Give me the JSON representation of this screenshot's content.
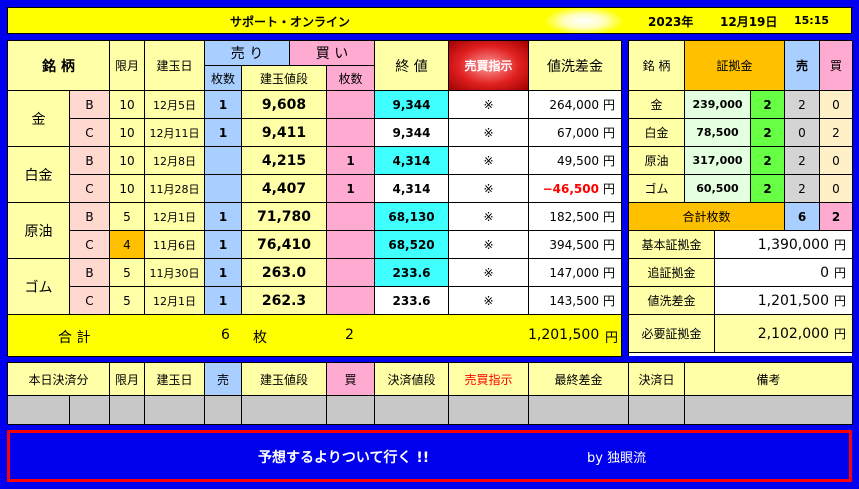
{
  "title": {
    "name": "サポート・オンライン",
    "year": "2023年",
    "date": "12月19日",
    "time": "15:15"
  },
  "main_headers": {
    "meigara": "銘 柄",
    "gengetsu": "限月",
    "tategyokubi": "建玉日",
    "uri": "売 り",
    "kai": "買 い",
    "maisu": "枚数",
    "tategyoku_nedan": "建玉値段",
    "owarine": "終 値",
    "baibai_shiji": "売買指示",
    "nearai_sakin": "値洗差金"
  },
  "products": [
    {
      "name": "金",
      "rows": [
        {
          "type": "B",
          "month": "10",
          "date": "12月5日",
          "sell_qty": "1",
          "price": "9,608",
          "buy_qty": "",
          "close": "9,344",
          "close_hl": true,
          "mark": "※",
          "diff": "264,000",
          "negative": false,
          "unit": "円"
        },
        {
          "type": "C",
          "month": "10",
          "date": "12月11日",
          "sell_qty": "1",
          "price": "9,411",
          "buy_qty": "",
          "close": "9,344",
          "close_hl": false,
          "mark": "※",
          "diff": "67,000",
          "negative": false,
          "unit": "円"
        }
      ]
    },
    {
      "name": "白金",
      "rows": [
        {
          "type": "B",
          "month": "10",
          "date": "12月8日",
          "sell_qty": "",
          "price": "4,215",
          "buy_qty": "1",
          "close": "4,314",
          "close_hl": true,
          "mark": "※",
          "diff": "49,500",
          "negative": false,
          "unit": "円"
        },
        {
          "type": "C",
          "month": "10",
          "date": "11月28日",
          "sell_qty": "",
          "price": "4,407",
          "buy_qty": "1",
          "close": "4,314",
          "close_hl": false,
          "mark": "※",
          "diff": "−46,500",
          "negative": true,
          "unit": "円"
        }
      ]
    },
    {
      "name": "原油",
      "rows": [
        {
          "type": "B",
          "month": "5",
          "date": "12月1日",
          "sell_qty": "1",
          "price": "71,780",
          "buy_qty": "",
          "close": "68,130",
          "close_hl": true,
          "mark": "※",
          "diff": "182,500",
          "negative": false,
          "unit": "円"
        },
        {
          "type": "C",
          "month": "4",
          "date": "11月6日",
          "sell_qty": "1",
          "price": "76,410",
          "buy_qty": "",
          "close": "68,520",
          "close_hl": true,
          "mark": "※",
          "diff": "394,500",
          "negative": false,
          "unit": "円"
        }
      ]
    },
    {
      "name": "ゴム",
      "rows": [
        {
          "type": "B",
          "month": "5",
          "date": "11月30日",
          "sell_qty": "1",
          "price": "263.0",
          "buy_qty": "",
          "close": "233.6",
          "close_hl": true,
          "mark": "※",
          "diff": "147,000",
          "negative": false,
          "unit": "円"
        },
        {
          "type": "C",
          "month": "5",
          "date": "12月1日",
          "sell_qty": "1",
          "price": "262.3",
          "buy_qty": "",
          "close": "233.6",
          "close_hl": false,
          "mark": "※",
          "diff": "143,500",
          "negative": false,
          "unit": "円"
        }
      ]
    }
  ],
  "total_row": {
    "label": "合 計",
    "sell_total": "6",
    "unit_mai": "枚",
    "buy_total": "2",
    "diff_total": "1,201,500",
    "unit": "円"
  },
  "margin_panel": {
    "headers": {
      "meigara": "銘 柄",
      "shokokin": "証拠金",
      "uri": "売",
      "kai": "買"
    },
    "rows": [
      {
        "name": "金",
        "amount": "239,000",
        "mult": "2",
        "sell": "2",
        "buy": "0"
      },
      {
        "name": "白金",
        "amount": "78,500",
        "mult": "2",
        "sell": "0",
        "buy": "2"
      },
      {
        "name": "原油",
        "amount": "317,000",
        "mult": "2",
        "sell": "2",
        "buy": "0"
      },
      {
        "name": "ゴム",
        "amount": "60,500",
        "mult": "2",
        "sell": "2",
        "buy": "0"
      }
    ],
    "total_label": "合計枚数",
    "total_sell": "6",
    "total_buy": "2",
    "summary": [
      {
        "label": "基本証拠金",
        "value": "1,390,000",
        "unit": "円"
      },
      {
        "label": "追証拠金",
        "value": "0",
        "unit": "円"
      },
      {
        "label": "値洗差金",
        "value": "1,201,500",
        "unit": "円"
      },
      {
        "label": "必要証拠金",
        "value": "2,102,000",
        "unit": "円"
      }
    ]
  },
  "settle_headers": {
    "honjitsu": "本日決済分",
    "gengetsu": "限月",
    "tategyokubi": "建玉日",
    "uri": "売",
    "tategyoku_nedan": "建玉値段",
    "kai": "買",
    "kessai_nedan": "決済値段",
    "baibai_shiji": "売買指示",
    "saishu_sakin": "最終差金",
    "kessaibi": "決済日",
    "biko": "備考"
  },
  "footer": {
    "message": "予想するよりついて行く !!",
    "by": "by 独眼流"
  },
  "colors": {
    "frame_blue": "#0000ee",
    "title_yellow": "#ffff00",
    "negative_red": "#ff0000",
    "footer_border": "#ff0000"
  }
}
